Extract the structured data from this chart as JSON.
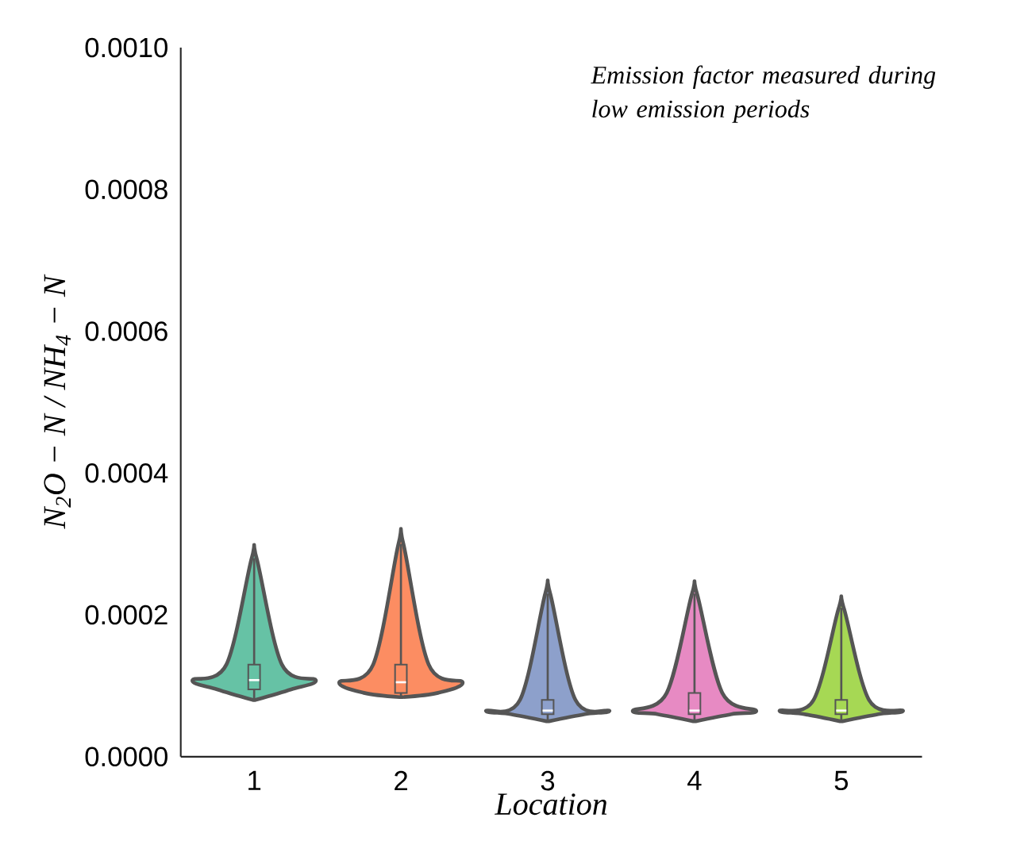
{
  "chart_data": {
    "type": "box",
    "categories": [
      "1",
      "2",
      "3",
      "4",
      "5"
    ],
    "boxes": [
      {
        "low": 8e-05,
        "q1": 9.5e-05,
        "median": 0.000108,
        "q3": 0.00013,
        "high": 0.00028
      },
      {
        "low": 8.4e-05,
        "q1": 9e-05,
        "median": 0.000105,
        "q3": 0.00013,
        "high": 0.0003
      },
      {
        "low": 5e-05,
        "q1": 6e-05,
        "median": 6.5e-05,
        "q3": 8e-05,
        "high": 0.00023
      },
      {
        "low": 5e-05,
        "q1": 6e-05,
        "median": 6.5e-05,
        "q3": 9e-05,
        "high": 0.00023
      },
      {
        "low": 5e-05,
        "q1": 6e-05,
        "median": 6.5e-05,
        "q3": 8e-05,
        "high": 0.00021
      }
    ],
    "colors": [
      "#66c2a5",
      "#fc8d62",
      "#8da0cb",
      "#e78ac3",
      "#a6d854"
    ],
    "ylim": [
      0,
      0.001
    ],
    "yticks": [
      {
        "value": 0,
        "label": "0.0000"
      },
      {
        "value": 0.0002,
        "label": "0.0002"
      },
      {
        "value": 0.0004,
        "label": "0.0004"
      },
      {
        "value": 0.0006,
        "label": "0.0006"
      },
      {
        "value": 0.0008,
        "label": "0.0008"
      },
      {
        "value": 0.001,
        "label": "0.0010"
      }
    ],
    "xlabel": "Location",
    "ylabel": "N$_{2}$O − N / NH$_{4}$ − N",
    "annotations": [
      "Emission factor measured during low emission periods"
    ]
  }
}
